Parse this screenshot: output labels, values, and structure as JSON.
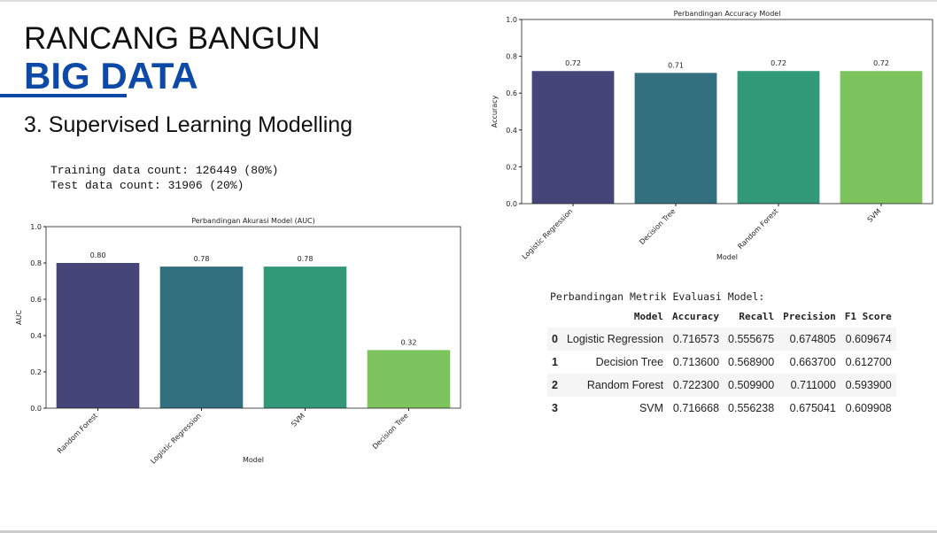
{
  "header": {
    "title": "RANCANG BANGUN",
    "subtitle": "BIG DATA",
    "section": "3. Supervised Learning Modelling"
  },
  "code_output": [
    "Training data count: 126449 (80%)",
    "Test data count: 31906 (20%)"
  ],
  "chart_data": [
    {
      "type": "bar",
      "title": "Perbandingan Akurasi Model (AUC)",
      "x_label": "Model",
      "y_label": "AUC",
      "categories": [
        "Random Forest",
        "Logistic Regression",
        "SVM",
        "Decision Tree"
      ],
      "values": [
        0.8,
        0.78,
        0.78,
        0.32
      ],
      "value_labels": [
        "0.80",
        "0.78",
        "0.78",
        "0.32"
      ],
      "colors": [
        "#46457a",
        "#33707f",
        "#31987a",
        "#7dc35e"
      ],
      "ylim": [
        0,
        1
      ],
      "yticks": [
        {
          "value": 0,
          "label": "0.0"
        },
        {
          "value": 0.2,
          "label": "0.2"
        },
        {
          "value": 0.4,
          "label": "0.4"
        },
        {
          "value": 0.6,
          "label": "0.6"
        },
        {
          "value": 0.8,
          "label": "0.8"
        },
        {
          "value": 1,
          "label": "1.0"
        }
      ],
      "grid": false
    },
    {
      "type": "bar",
      "title": "Perbandingan Accuracy Model",
      "x_label": "Model",
      "y_label": "Accuracy",
      "categories": [
        "Logistic Regression",
        "Decision Tree",
        "Random Forest",
        "SVM"
      ],
      "values": [
        0.72,
        0.71,
        0.72,
        0.72
      ],
      "colors": [
        "#46457a",
        "#33707f",
        "#31987a",
        "#7dc35e"
      ],
      "ylim": [
        0,
        1
      ],
      "yticks": [
        {
          "value": 0,
          "label": "0.0"
        },
        {
          "value": 0.2,
          "label": "0.2"
        },
        {
          "value": 0.4,
          "label": "0.4"
        },
        {
          "value": 0.6,
          "label": "0.6"
        },
        {
          "value": 0.8,
          "label": "0.8"
        },
        {
          "value": 1,
          "label": "1.0"
        }
      ],
      "grid": false
    }
  ],
  "table": {
    "caption": "Perbandingan Metrik Evaluasi Model:",
    "columns": [
      "Model",
      "Accuracy",
      "Recall",
      "Precision",
      "F1 Score"
    ],
    "rows": [
      [
        "0",
        "Logistic Regression",
        "0.716573",
        "0.555675",
        "0.674805",
        "0.609674"
      ],
      [
        "1",
        "Decision Tree",
        "0.713600",
        "0.568900",
        "0.663700",
        "0.612700"
      ],
      [
        "2",
        "Random Forest",
        "0.722300",
        "0.509900",
        "0.711000",
        "0.593900"
      ],
      [
        "3",
        "SVM",
        "0.716668",
        "0.556238",
        "0.675041",
        "0.609908"
      ]
    ]
  }
}
